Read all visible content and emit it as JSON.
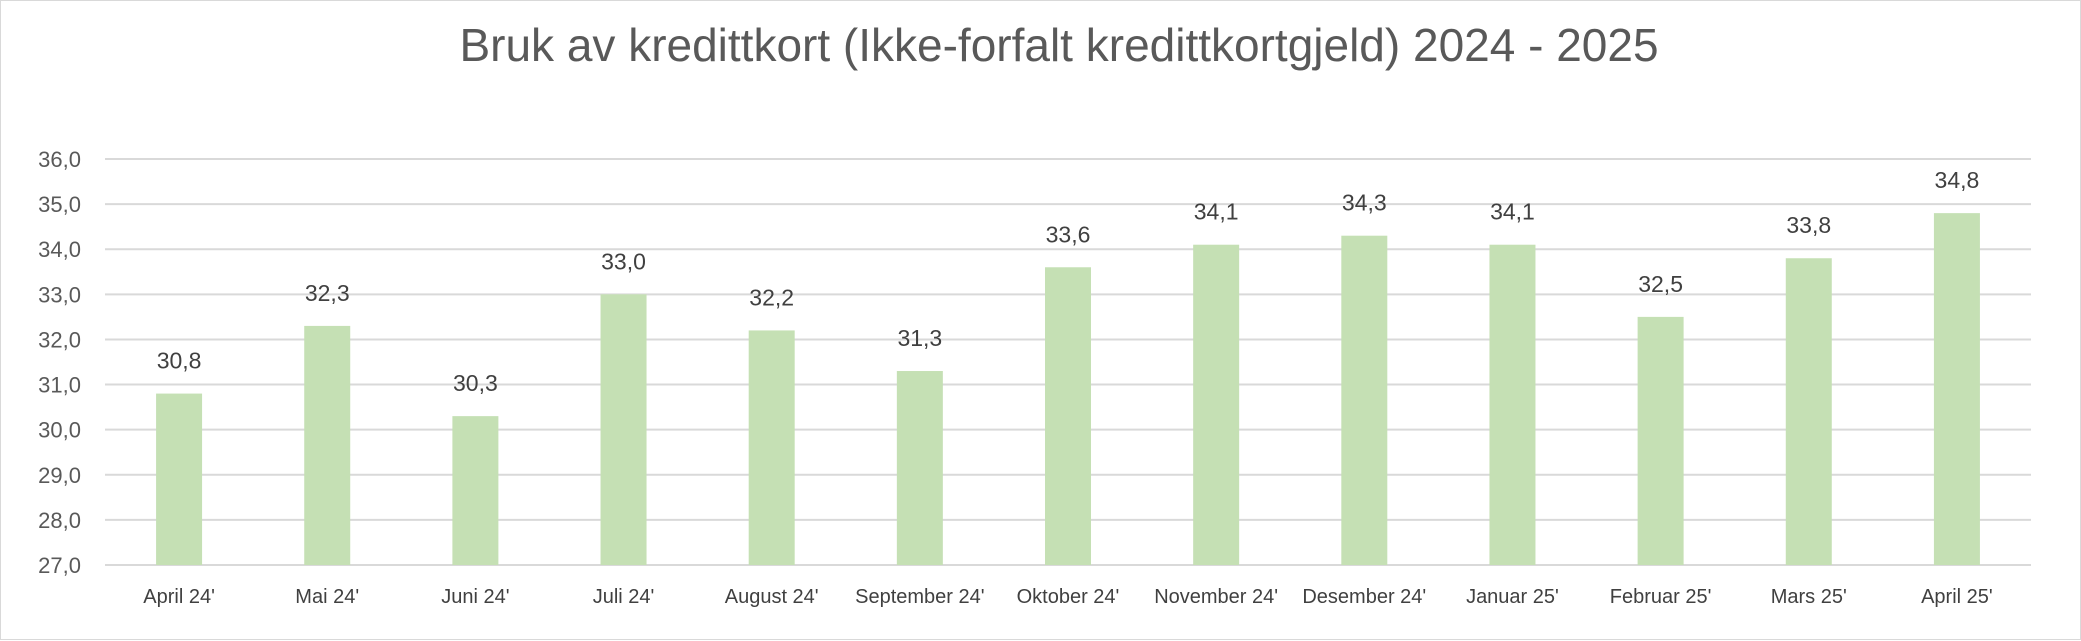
{
  "chart_data": {
    "type": "bar",
    "title": "Bruk av kredittkort (Ikke-forfalt kredittkortgjeld) 2024 - 2025",
    "xlabel": "",
    "ylabel": "",
    "categories": [
      "April 24'",
      "Mai 24'",
      "Juni 24'",
      "Juli 24'",
      "August 24'",
      "September 24'",
      "Oktober 24'",
      "November 24'",
      "Desember 24'",
      "Januar 25'",
      "Februar 25'",
      "Mars 25'",
      "April 25'"
    ],
    "values": [
      30.8,
      32.3,
      30.3,
      33.0,
      32.2,
      31.3,
      33.6,
      34.1,
      34.3,
      34.1,
      32.5,
      33.8,
      34.8
    ],
    "data_labels": [
      "30,8",
      "32,3",
      "30,3",
      "33,0",
      "32,2",
      "31,3",
      "33,6",
      "34,1",
      "34,3",
      "34,1",
      "32,5",
      "33,8",
      "34,8"
    ],
    "yticks": [
      27,
      28,
      29,
      30,
      31,
      32,
      33,
      34,
      35,
      36
    ],
    "ytick_labels": [
      "27,0",
      "28,0",
      "29,0",
      "30,0",
      "31,0",
      "32,0",
      "33,0",
      "34,0",
      "35,0",
      "36,0"
    ],
    "ylim": [
      27,
      36
    ],
    "grid": true,
    "legend": "none",
    "bar_color": "#c5e0b4"
  }
}
